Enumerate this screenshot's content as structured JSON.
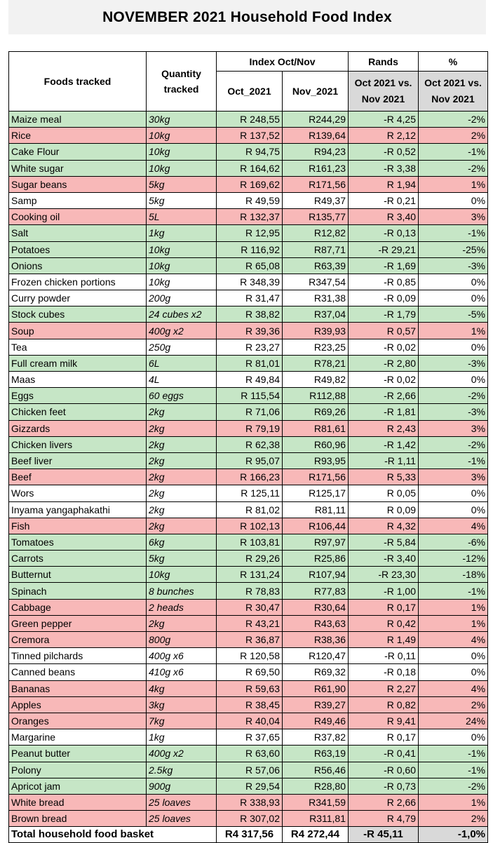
{
  "title": "NOVEMBER 2021 Household Food Index",
  "headers": {
    "foods": "Foods tracked",
    "qty_line1": "Quantity",
    "qty_line2": "tracked",
    "index_group": "Index Oct/Nov",
    "rands_group": "Rands",
    "pct_group": "%",
    "oct": "Oct_2021",
    "nov": "Nov_2021",
    "rands_line1": "Oct 2021 vs.",
    "rands_line2": "Nov 2021",
    "pct_line1": "Oct 2021 vs.",
    "pct_line2": "Nov 2021"
  },
  "colors": {
    "increase": "#f8b8b8",
    "decrease": "#c6e6c6",
    "neutral": "#ffffff",
    "header_grey": "#d9d9d9"
  },
  "rows": [
    {
      "food": "Maize meal",
      "qty": "30kg",
      "oct": "R 248,55",
      "nov": "R244,29",
      "rands": "-R 4,25",
      "pct": "-2%",
      "status": "decrease"
    },
    {
      "food": "Rice",
      "qty": "10kg",
      "oct": "R 137,52",
      "nov": "R139,64",
      "rands": "R 2,12",
      "pct": "2%",
      "status": "increase"
    },
    {
      "food": "Cake Flour",
      "qty": "10kg",
      "oct": "R 94,75",
      "nov": "R94,23",
      "rands": "-R 0,52",
      "pct": "-1%",
      "status": "decrease"
    },
    {
      "food": "White sugar",
      "qty": "10kg",
      "oct": "R 164,62",
      "nov": "R161,23",
      "rands": "-R 3,38",
      "pct": "-2%",
      "status": "decrease"
    },
    {
      "food": "Sugar beans",
      "qty": "5kg",
      "oct": "R 169,62",
      "nov": "R171,56",
      "rands": "R 1,94",
      "pct": "1%",
      "status": "increase"
    },
    {
      "food": "Samp",
      "qty": "5kg",
      "oct": "R 49,59",
      "nov": "R49,37",
      "rands": "-R 0,21",
      "pct": "0%",
      "status": "neutral"
    },
    {
      "food": "Cooking oil",
      "qty": "5L",
      "oct": "R 132,37",
      "nov": "R135,77",
      "rands": "R 3,40",
      "pct": "3%",
      "status": "increase"
    },
    {
      "food": "Salt",
      "qty": "1kg",
      "oct": "R 12,95",
      "nov": "R12,82",
      "rands": "-R 0,13",
      "pct": "-1%",
      "status": "decrease"
    },
    {
      "food": "Potatoes",
      "qty": "10kg",
      "oct": "R 116,92",
      "nov": "R87,71",
      "rands": "-R 29,21",
      "pct": "-25%",
      "status": "decrease"
    },
    {
      "food": "Onions",
      "qty": "10kg",
      "oct": "R 65,08",
      "nov": "R63,39",
      "rands": "-R 1,69",
      "pct": "-3%",
      "status": "decrease"
    },
    {
      "food": "Frozen chicken portions",
      "qty": "10kg",
      "oct": "R 348,39",
      "nov": "R347,54",
      "rands": "-R 0,85",
      "pct": "0%",
      "status": "neutral"
    },
    {
      "food": "Curry powder",
      "qty": "200g",
      "oct": "R 31,47",
      "nov": "R31,38",
      "rands": "-R 0,09",
      "pct": "0%",
      "status": "neutral"
    },
    {
      "food": "Stock cubes",
      "qty": "24 cubes x2",
      "oct": "R 38,82",
      "nov": "R37,04",
      "rands": "-R 1,79",
      "pct": "-5%",
      "status": "decrease"
    },
    {
      "food": "Soup",
      "qty": "400g x2",
      "oct": "R 39,36",
      "nov": "R39,93",
      "rands": "R 0,57",
      "pct": "1%",
      "status": "increase"
    },
    {
      "food": "Tea",
      "qty": "250g",
      "oct": "R 23,27",
      "nov": "R23,25",
      "rands": "-R 0,02",
      "pct": "0%",
      "status": "neutral"
    },
    {
      "food": "Full cream milk",
      "qty": "6L",
      "oct": "R 81,01",
      "nov": "R78,21",
      "rands": "-R 2,80",
      "pct": "-3%",
      "status": "decrease"
    },
    {
      "food": "Maas",
      "qty": "4L",
      "oct": "R 49,84",
      "nov": "R49,82",
      "rands": "-R 0,02",
      "pct": "0%",
      "status": "neutral"
    },
    {
      "food": "Eggs",
      "qty": "60 eggs",
      "oct": "R 115,54",
      "nov": "R112,88",
      "rands": "-R 2,66",
      "pct": "-2%",
      "status": "decrease"
    },
    {
      "food": "Chicken feet",
      "qty": "2kg",
      "oct": "R 71,06",
      "nov": "R69,26",
      "rands": "-R 1,81",
      "pct": "-3%",
      "status": "decrease"
    },
    {
      "food": "Gizzards",
      "qty": "2kg",
      "oct": "R 79,19",
      "nov": "R81,61",
      "rands": "R 2,43",
      "pct": "3%",
      "status": "increase"
    },
    {
      "food": "Chicken livers",
      "qty": "2kg",
      "oct": "R 62,38",
      "nov": "R60,96",
      "rands": "-R 1,42",
      "pct": "-2%",
      "status": "decrease"
    },
    {
      "food": "Beef liver",
      "qty": "2kg",
      "oct": "R 95,07",
      "nov": "R93,95",
      "rands": "-R 1,11",
      "pct": "-1%",
      "status": "decrease"
    },
    {
      "food": "Beef",
      "qty": "2kg",
      "oct": "R 166,23",
      "nov": "R171,56",
      "rands": "R 5,33",
      "pct": "3%",
      "status": "increase"
    },
    {
      "food": "Wors",
      "qty": "2kg",
      "oct": "R 125,11",
      "nov": "R125,17",
      "rands": "R 0,05",
      "pct": "0%",
      "status": "neutral"
    },
    {
      "food": "Inyama yangaphakathi",
      "qty": "2kg",
      "oct": "R 81,02",
      "nov": "R81,11",
      "rands": "R 0,09",
      "pct": "0%",
      "status": "neutral"
    },
    {
      "food": "Fish",
      "qty": "2kg",
      "oct": "R 102,13",
      "nov": "R106,44",
      "rands": "R 4,32",
      "pct": "4%",
      "status": "increase"
    },
    {
      "food": "Tomatoes",
      "qty": "6kg",
      "oct": "R 103,81",
      "nov": "R97,97",
      "rands": "-R 5,84",
      "pct": "-6%",
      "status": "decrease"
    },
    {
      "food": "Carrots",
      "qty": "5kg",
      "oct": "R 29,26",
      "nov": "R25,86",
      "rands": "-R 3,40",
      "pct": "-12%",
      "status": "decrease"
    },
    {
      "food": "Butternut",
      "qty": "10kg",
      "oct": "R 131,24",
      "nov": "R107,94",
      "rands": "-R 23,30",
      "pct": "-18%",
      "status": "decrease"
    },
    {
      "food": "Spinach",
      "qty": "8 bunches",
      "oct": "R 78,83",
      "nov": "R77,83",
      "rands": "-R 1,00",
      "pct": "-1%",
      "status": "decrease"
    },
    {
      "food": "Cabbage",
      "qty": "2 heads",
      "oct": "R 30,47",
      "nov": "R30,64",
      "rands": "R 0,17",
      "pct": "1%",
      "status": "increase"
    },
    {
      "food": "Green pepper",
      "qty": "2kg",
      "oct": "R 43,21",
      "nov": "R43,63",
      "rands": "R 0,42",
      "pct": "1%",
      "status": "increase"
    },
    {
      "food": "Cremora",
      "qty": "800g",
      "oct": "R 36,87",
      "nov": "R38,36",
      "rands": "R 1,49",
      "pct": "4%",
      "status": "increase"
    },
    {
      "food": "Tinned pilchards",
      "qty": "400g x6",
      "oct": "R 120,58",
      "nov": "R120,47",
      "rands": "-R 0,11",
      "pct": "0%",
      "status": "neutral"
    },
    {
      "food": "Canned beans",
      "qty": "410g x6",
      "oct": "R 69,50",
      "nov": "R69,32",
      "rands": "-R 0,18",
      "pct": "0%",
      "status": "neutral"
    },
    {
      "food": "Bananas",
      "qty": "4kg",
      "oct": "R 59,63",
      "nov": "R61,90",
      "rands": "R 2,27",
      "pct": "4%",
      "status": "increase"
    },
    {
      "food": "Apples",
      "qty": "3kg",
      "oct": "R 38,45",
      "nov": "R39,27",
      "rands": "R 0,82",
      "pct": "2%",
      "status": "increase"
    },
    {
      "food": "Oranges",
      "qty": "7kg",
      "oct": "R 40,04",
      "nov": "R49,46",
      "rands": "R 9,41",
      "pct": "24%",
      "status": "increase"
    },
    {
      "food": "Margarine",
      "qty": "1kg",
      "oct": "R 37,65",
      "nov": "R37,82",
      "rands": "R 0,17",
      "pct": "0%",
      "status": "neutral"
    },
    {
      "food": "Peanut butter",
      "qty": "400g x2",
      "oct": "R 63,60",
      "nov": "R63,19",
      "rands": "-R 0,41",
      "pct": "-1%",
      "status": "decrease"
    },
    {
      "food": "Polony",
      "qty": "2.5kg",
      "oct": "R 57,06",
      "nov": "R56,46",
      "rands": "-R 0,60",
      "pct": "-1%",
      "status": "decrease"
    },
    {
      "food": "Apricot jam",
      "qty": "900g",
      "oct": "R 29,54",
      "nov": "R28,80",
      "rands": "-R 0,73",
      "pct": "-2%",
      "status": "decrease"
    },
    {
      "food": "White bread",
      "qty": "25 loaves",
      "oct": "R 338,93",
      "nov": "R341,59",
      "rands": "R 2,66",
      "pct": "1%",
      "status": "increase"
    },
    {
      "food": "Brown bread",
      "qty": "25 loaves",
      "oct": "R 307,02",
      "nov": "R311,81",
      "rands": "R 4,79",
      "pct": "2%",
      "status": "increase"
    }
  ],
  "total": {
    "label": "Total household food basket",
    "oct": "R4 317,56",
    "nov": "R4 272,44",
    "rands": "-R 45,11",
    "pct": "-1,0%"
  }
}
